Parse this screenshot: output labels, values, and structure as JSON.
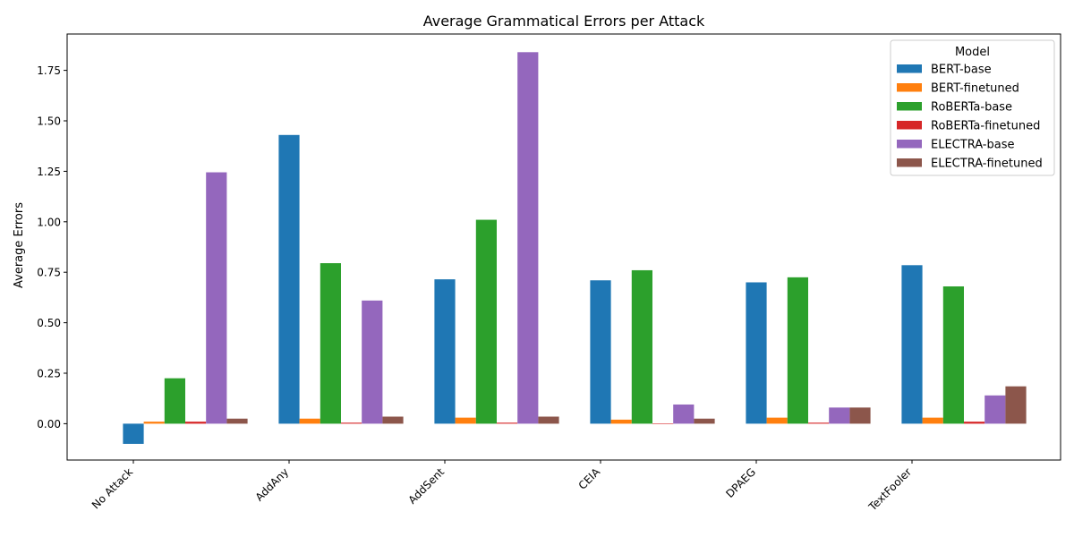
{
  "chart_data": {
    "type": "bar",
    "title": "Average Grammatical Errors per Attack",
    "xlabel": "",
    "ylabel": "Average Errors",
    "ylim": [
      -0.18,
      1.93
    ],
    "yticks": [
      0.0,
      0.25,
      0.5,
      0.75,
      1.0,
      1.25,
      1.5,
      1.75
    ],
    "ytick_labels": [
      "0.00",
      "0.25",
      "0.50",
      "0.75",
      "1.00",
      "1.25",
      "1.50",
      "1.75"
    ],
    "categories": [
      "No Attack",
      "AddAny",
      "AddSent",
      "CEIA",
      "DPAEG",
      "TextFooler"
    ],
    "legend": {
      "title": "Model",
      "placement": "top-right"
    },
    "grid": false,
    "series": [
      {
        "name": "BERT-base",
        "color": "#1f77b4",
        "values": [
          -0.1,
          1.43,
          0.715,
          0.71,
          0.7,
          0.785
        ]
      },
      {
        "name": "BERT-finetuned",
        "color": "#ff7f0e",
        "values": [
          0.01,
          0.025,
          0.03,
          0.02,
          0.03,
          0.03
        ]
      },
      {
        "name": "RoBERTa-base",
        "color": "#2ca02c",
        "values": [
          0.225,
          0.795,
          1.01,
          0.76,
          0.725,
          0.68
        ]
      },
      {
        "name": "RoBERTa-finetuned",
        "color": "#d62728",
        "values": [
          0.01,
          0.005,
          0.005,
          0.0,
          0.005,
          0.01
        ]
      },
      {
        "name": "ELECTRA-base",
        "color": "#9467bd",
        "values": [
          1.245,
          0.61,
          1.84,
          0.095,
          0.08,
          0.14
        ]
      },
      {
        "name": "ELECTRA-finetuned",
        "color": "#8c564b",
        "values": [
          0.025,
          0.035,
          0.035,
          0.025,
          0.08,
          0.185
        ]
      }
    ]
  }
}
